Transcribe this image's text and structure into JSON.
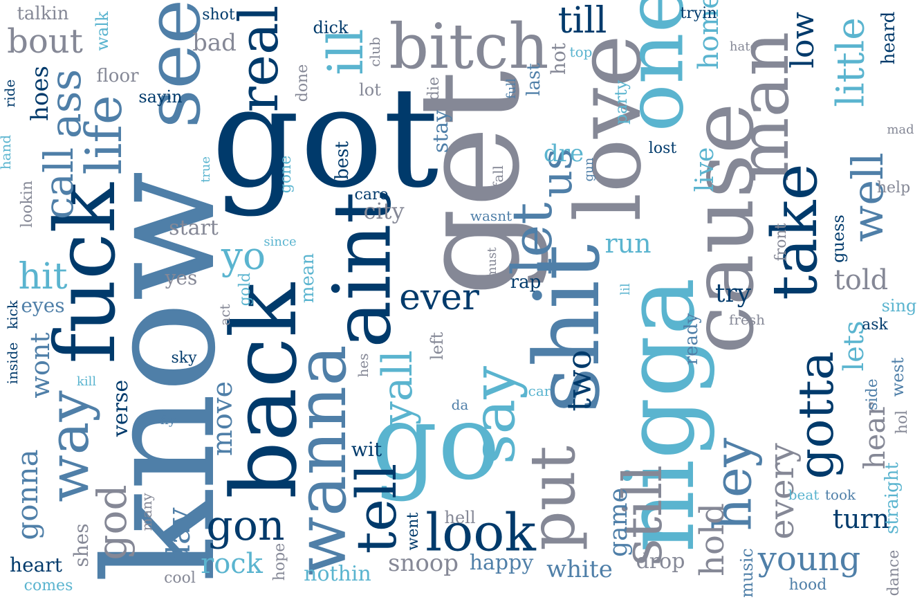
{
  "palette": {
    "navy": "#003a6b",
    "steel": "#4f7fa8",
    "gray": "#858896",
    "cyan": "#5ab4cf"
  },
  "words": {
    "know": "know",
    "got": "got",
    "get": "get",
    "back": "back",
    "fuck": "fuck",
    "go": "go",
    "shit": "shit",
    "nigga": "nigga",
    "love": "love",
    "aint": "aint",
    "cause": "cause",
    "one": "one",
    "man": "man",
    "bitch": "bitch",
    "see": "see",
    "wanna": "wanna",
    "take": "take",
    "say": "say",
    "tell": "tell",
    "look": "look",
    "real": "real",
    "let": "let",
    "put": "put",
    "still": "still",
    "hey": "hey",
    "gotta": "gotta",
    "way": "way",
    "life": "life",
    "ass": "ass",
    "call": "call",
    "gon": "gon",
    "till": "till",
    "bout": "bout",
    "talkin": "talkin",
    "ill": "ill",
    "little": "little",
    "low": "low",
    "home": "home",
    "well": "well",
    "us": "us",
    "yall": "yall",
    "ever": "ever",
    "two": "two",
    "yo": "yo",
    "hit": "hit",
    "god": "god",
    "gonna": "gonna",
    "day": "day",
    "young": "young",
    "every": "every",
    "hear": "hear",
    "lets": "lets",
    "told": "told",
    "turn": "turn",
    "hold": "hold",
    "run": "run",
    "try": "try",
    "live": "live",
    "stay": "stay",
    "rock": "rock",
    "nothin": "nothin",
    "snoop": "snoop",
    "white": "white",
    "happy": "happy",
    "drop": "drop",
    "game": "game",
    "move": "move",
    "verse": "verse",
    "wont": "wont",
    "eyes": "eyes",
    "hoes": "hoes",
    "city": "city",
    "start": "start",
    "yes": "yes",
    "shes": "shes",
    "heart": "heart",
    "comes": "comes",
    "cool": "cool",
    "hope": "hope",
    "went": "went",
    "hell": "hell",
    "wit": "wit",
    "many": "many",
    "music": "music",
    "hood": "hood",
    "dance": "dance",
    "straight": "straight",
    "west": "west",
    "sing": "sing",
    "ask": "ask",
    "side": "side",
    "hol": "hol",
    "beat": "beat",
    "took": "took",
    "mean": "mean",
    "gold": "gold",
    "act": "act",
    "sky": "sky",
    "kill": "kill",
    "fly": "fly",
    "da": "da",
    "car": "car",
    "hes": "hes",
    "left": "left",
    "rap": "rap",
    "must": "must",
    "ready": "ready",
    "fresh": "fresh",
    "front": "front",
    "guess": "guess",
    "lil": "lil",
    "wasnt": "wasnt",
    "fall": "fall",
    "care": "care",
    "best": "best",
    "lost": "lost",
    "dre": "dre",
    "gun": "gun",
    "party": "party",
    "last": "last",
    "full": "full",
    "top": "top",
    "hot": "hot",
    "club": "club",
    "die": "die",
    "lot": "lot",
    "done": "done",
    "dick": "dick",
    "shot": "shot",
    "bad": "bad",
    "walk": "walk",
    "floor": "floor",
    "sayin": "sayin",
    "ride": "ride",
    "lookin": "lookin",
    "hand": "hand",
    "true": "true",
    "gone": "gone",
    "since": "since",
    "inside": "inside",
    "kick": "kick",
    "tryin": "tryin",
    "heard": "heard",
    "hate": "hate",
    "mad": "mad",
    "help": "help"
  }
}
